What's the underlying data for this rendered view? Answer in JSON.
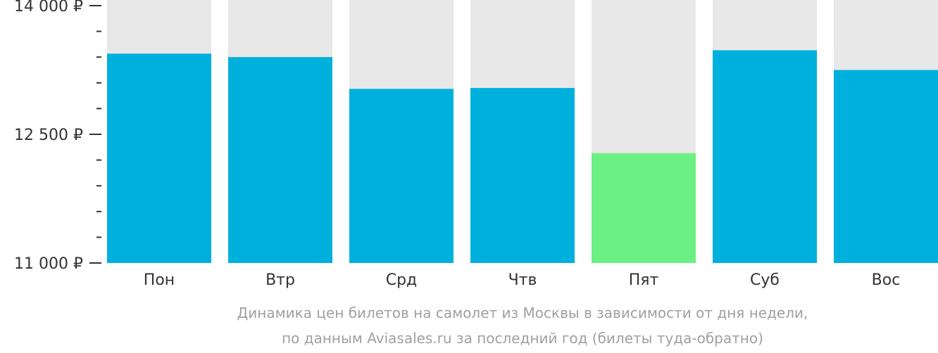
{
  "chart_data": {
    "type": "bar",
    "categories": [
      "Пон",
      "Втр",
      "Срд",
      "Чтв",
      "Пят",
      "Суб",
      "Вос"
    ],
    "values": [
      13440,
      13400,
      13030,
      13040,
      12280,
      13480,
      13250
    ],
    "ylim": [
      11000,
      14000
    ],
    "yticks": [
      {
        "value": 14000,
        "label": "14 000 ₽"
      },
      {
        "value": 12500,
        "label": "12 500 ₽"
      },
      {
        "value": 11000,
        "label": "11 000 ₽"
      }
    ],
    "minor_ticks": [
      11300,
      11600,
      11900,
      12200,
      12800,
      13100,
      13400,
      13700
    ],
    "highlight_index": 4,
    "colors": {
      "bar": "#00b0dc",
      "highlight": "#6cf083",
      "background_column": "#e8e8e8",
      "axis": "#333333",
      "caption": "#a0a0a0"
    },
    "caption_lines": [
      "Динамика цен билетов на самолет из Москвы в зависимости от дня недели,",
      "по данным Aviasales.ru за последний год (билеты туда-обратно)"
    ]
  }
}
